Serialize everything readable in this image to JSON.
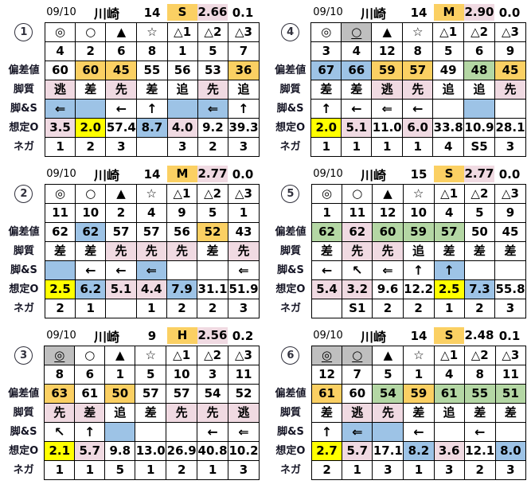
{
  "colors": {
    "orange": "#FBD063",
    "pink": "#F0DAE2",
    "blue": "#9DC3E6",
    "green": "#B4D7A4",
    "yellow": "#FFFF00",
    "gray": "#BFBFBF",
    "white": "#FFFFFF"
  },
  "row_labels": {
    "hensachi": "偏差値",
    "kyakushitsu": "脚質",
    "ashi_s": "脚&S",
    "soutei_o": "想定O",
    "nega": "ネガ"
  },
  "panels": [
    {
      "num": "1",
      "header": {
        "date": "09/10",
        "track": "川崎",
        "race": "14",
        "class": "S",
        "class_bg": "orange",
        "odds": "2.66",
        "odds_bg": "pink",
        "diff": "0.1"
      },
      "symbols": [
        {
          "t": "◎"
        },
        {
          "t": "○"
        },
        {
          "t": "▲"
        },
        {
          "t": "☆"
        },
        {
          "t": "△1"
        },
        {
          "t": "△2"
        },
        {
          "t": "△3"
        }
      ],
      "numbers": [
        "4",
        "2",
        "6",
        "8",
        "1",
        "5",
        "7"
      ],
      "hensachi": [
        {
          "t": "60"
        },
        {
          "t": "60",
          "bg": "orange"
        },
        {
          "t": "45",
          "bg": "orange"
        },
        {
          "t": "55"
        },
        {
          "t": "56"
        },
        {
          "t": "53"
        },
        {
          "t": "36",
          "bg": "orange"
        }
      ],
      "kyakushitsu": [
        {
          "t": "逃",
          "bg": "pink"
        },
        {
          "t": "差"
        },
        {
          "t": "先",
          "bg": "pink"
        },
        {
          "t": "差"
        },
        {
          "t": "追"
        },
        {
          "t": "先",
          "bg": "pink"
        },
        {
          "t": "追"
        }
      ],
      "ashi_s": [
        {
          "t": "⇐",
          "bg": "blue"
        },
        {
          "t": "",
          "bg": "blue"
        },
        {
          "t": "←"
        },
        {
          "t": "↑"
        },
        {
          "t": "",
          "bg": "blue"
        },
        {
          "t": "⇐",
          "bg": "blue"
        },
        {
          "t": "↑"
        }
      ],
      "soutei_o": [
        {
          "t": "3.5",
          "bg": "pink"
        },
        {
          "t": "2.0",
          "bg": "yellow"
        },
        {
          "t": "57.4"
        },
        {
          "t": "8.7",
          "bg": "blue"
        },
        {
          "t": "4.0",
          "bg": "pink"
        },
        {
          "t": "9.2"
        },
        {
          "t": "39.3"
        }
      ],
      "nega": [
        "1",
        "2",
        "3",
        "",
        "3",
        "2",
        "3"
      ]
    },
    {
      "num": "4",
      "header": {
        "date": "09/10",
        "track": "川崎",
        "race": "14",
        "class": "M",
        "class_bg": "orange",
        "odds": "2.90",
        "odds_bg": "pink",
        "diff": "0.0"
      },
      "symbols": [
        {
          "t": "◎"
        },
        {
          "t": "○",
          "bg": "gray",
          "u": true
        },
        {
          "t": "▲"
        },
        {
          "t": "☆"
        },
        {
          "t": "△1"
        },
        {
          "t": "△2"
        },
        {
          "t": "△3"
        }
      ],
      "numbers": [
        "3",
        "4",
        "12",
        "8",
        "5",
        "6",
        "9"
      ],
      "hensachi": [
        {
          "t": "67",
          "bg": "blue"
        },
        {
          "t": "66",
          "bg": "blue"
        },
        {
          "t": "59",
          "bg": "orange"
        },
        {
          "t": "57",
          "bg": "orange"
        },
        {
          "t": "49"
        },
        {
          "t": "48",
          "bg": "green"
        },
        {
          "t": "45",
          "bg": "orange"
        }
      ],
      "kyakushitsu": [
        {
          "t": "差"
        },
        {
          "t": "差"
        },
        {
          "t": "逃",
          "bg": "pink"
        },
        {
          "t": "先",
          "bg": "pink"
        },
        {
          "t": "追"
        },
        {
          "t": "追"
        },
        {
          "t": "先",
          "bg": "pink"
        }
      ],
      "ashi_s": [
        {
          "t": "↑"
        },
        {
          "t": "←"
        },
        {
          "t": "⇐"
        },
        {
          "t": "←"
        },
        {
          "t": ""
        },
        {
          "t": "",
          "bg": "blue"
        },
        {
          "t": ""
        }
      ],
      "soutei_o": [
        {
          "t": "2.0",
          "bg": "yellow"
        },
        {
          "t": "5.1",
          "bg": "pink"
        },
        {
          "t": "11.0"
        },
        {
          "t": "6.0",
          "bg": "pink"
        },
        {
          "t": "33.8"
        },
        {
          "t": "10.9"
        },
        {
          "t": "28.1"
        }
      ],
      "nega": [
        "1",
        "1",
        "1",
        "1",
        "4",
        "S5",
        "3"
      ]
    },
    {
      "num": "2",
      "header": {
        "date": "09/10",
        "track": "川崎",
        "race": "14",
        "class": "M",
        "class_bg": "orange",
        "odds": "2.77",
        "odds_bg": "pink",
        "diff": "0.0"
      },
      "symbols": [
        {
          "t": "◎"
        },
        {
          "t": "○"
        },
        {
          "t": "▲"
        },
        {
          "t": "☆"
        },
        {
          "t": "△1"
        },
        {
          "t": "△2"
        },
        {
          "t": "△3"
        }
      ],
      "numbers": [
        "11",
        "10",
        "2",
        "4",
        "9",
        "5",
        "1"
      ],
      "hensachi": [
        {
          "t": "62"
        },
        {
          "t": "62",
          "bg": "blue"
        },
        {
          "t": "57"
        },
        {
          "t": "57"
        },
        {
          "t": "56"
        },
        {
          "t": "52",
          "bg": "orange"
        },
        {
          "t": "43"
        }
      ],
      "kyakushitsu": [
        {
          "t": "差"
        },
        {
          "t": "差"
        },
        {
          "t": "先",
          "bg": "pink"
        },
        {
          "t": "先",
          "bg": "pink"
        },
        {
          "t": "先",
          "bg": "pink"
        },
        {
          "t": "差"
        },
        {
          "t": "先",
          "bg": "pink"
        }
      ],
      "ashi_s": [
        {
          "t": "",
          "bg": "blue"
        },
        {
          "t": "←"
        },
        {
          "t": "←"
        },
        {
          "t": "⇐",
          "bg": "blue"
        },
        {
          "t": ""
        },
        {
          "t": ""
        },
        {
          "t": "⇐"
        }
      ],
      "soutei_o": [
        {
          "t": "2.5",
          "bg": "yellow"
        },
        {
          "t": "6.2",
          "bg": "blue"
        },
        {
          "t": "5.1",
          "bg": "pink"
        },
        {
          "t": "4.4",
          "bg": "pink"
        },
        {
          "t": "7.9",
          "bg": "blue"
        },
        {
          "t": "31.1"
        },
        {
          "t": "51.9"
        }
      ],
      "nega": [
        "2",
        "1",
        "",
        "1",
        "2",
        "2",
        "3"
      ]
    },
    {
      "num": "5",
      "header": {
        "date": "09/10",
        "track": "川崎",
        "race": "15",
        "class": "S",
        "class_bg": "orange",
        "odds": "2.77",
        "odds_bg": "pink",
        "diff": "0.0"
      },
      "symbols": [
        {
          "t": "◎"
        },
        {
          "t": "○"
        },
        {
          "t": "▲"
        },
        {
          "t": "☆"
        },
        {
          "t": "△1"
        },
        {
          "t": "△2"
        },
        {
          "t": "△3"
        }
      ],
      "numbers": [
        "1",
        "11",
        "12",
        "10",
        "4",
        "5",
        "9"
      ],
      "hensachi": [
        {
          "t": "62",
          "bg": "green"
        },
        {
          "t": "62",
          "bg": "pink"
        },
        {
          "t": "60",
          "bg": "green"
        },
        {
          "t": "59",
          "bg": "green"
        },
        {
          "t": "57",
          "bg": "green"
        },
        {
          "t": "50"
        },
        {
          "t": "45"
        }
      ],
      "kyakushitsu": [
        {
          "t": "差"
        },
        {
          "t": "先",
          "bg": "pink"
        },
        {
          "t": "先",
          "bg": "pink"
        },
        {
          "t": "追"
        },
        {
          "t": "差"
        },
        {
          "t": "差"
        },
        {
          "t": "差"
        }
      ],
      "ashi_s": [
        {
          "t": "←"
        },
        {
          "t": "↖"
        },
        {
          "t": "⇐"
        },
        {
          "t": "↑"
        },
        {
          "t": "↑",
          "bg": "blue"
        },
        {
          "t": ""
        },
        {
          "t": ""
        }
      ],
      "soutei_o": [
        {
          "t": "5.4",
          "bg": "pink"
        },
        {
          "t": "3.2",
          "bg": "pink"
        },
        {
          "t": "9.6"
        },
        {
          "t": "12.2"
        },
        {
          "t": "2.5",
          "bg": "yellow"
        },
        {
          "t": "7.3",
          "bg": "blue"
        },
        {
          "t": "55.8"
        }
      ],
      "nega": [
        "",
        "S1",
        "2",
        "2",
        "1",
        "2",
        "3"
      ]
    },
    {
      "num": "3",
      "header": {
        "date": "09/10",
        "track": "川崎",
        "race": "9",
        "class": "H",
        "class_bg": "orange",
        "odds": "2.56",
        "odds_bg": "pink",
        "diff": "0.2"
      },
      "symbols": [
        {
          "t": "◎",
          "bg": "gray",
          "u": true
        },
        {
          "t": "○"
        },
        {
          "t": "▲"
        },
        {
          "t": "☆"
        },
        {
          "t": "△1"
        },
        {
          "t": "△2"
        },
        {
          "t": "△3"
        }
      ],
      "numbers": [
        "8",
        "6",
        "1",
        "5",
        "10",
        "3",
        "11"
      ],
      "hensachi": [
        {
          "t": "63",
          "bg": "orange"
        },
        {
          "t": "61"
        },
        {
          "t": "50",
          "bg": "orange"
        },
        {
          "t": "57"
        },
        {
          "t": "57"
        },
        {
          "t": "54"
        },
        {
          "t": "52"
        }
      ],
      "kyakushitsu": [
        {
          "t": "先",
          "bg": "pink"
        },
        {
          "t": "差",
          "bg": "pink"
        },
        {
          "t": "追"
        },
        {
          "t": "差"
        },
        {
          "t": "先",
          "bg": "pink"
        },
        {
          "t": "先",
          "bg": "pink"
        },
        {
          "t": "逃",
          "bg": "pink"
        }
      ],
      "ashi_s": [
        {
          "t": "↖"
        },
        {
          "t": "↑"
        },
        {
          "t": "",
          "bg": "blue"
        },
        {
          "t": ""
        },
        {
          "t": ""
        },
        {
          "t": "←"
        },
        {
          "t": "⇐"
        }
      ],
      "soutei_o": [
        {
          "t": "2.1",
          "bg": "yellow"
        },
        {
          "t": "5.7",
          "bg": "pink"
        },
        {
          "t": "9.8"
        },
        {
          "t": "13.0"
        },
        {
          "t": "26.9"
        },
        {
          "t": "40.8"
        },
        {
          "t": "10.2"
        }
      ],
      "nega": [
        "1",
        "1",
        "5",
        "1",
        "2",
        "1",
        "3"
      ]
    },
    {
      "num": "6",
      "header": {
        "date": "09/10",
        "track": "川崎",
        "race": "14",
        "class": "S",
        "class_bg": "orange",
        "odds": "2.48",
        "odds_bg": "white",
        "diff": "0.1"
      },
      "symbols": [
        {
          "t": "◎",
          "bg": "gray",
          "u": true
        },
        {
          "t": "○",
          "bg": "gray",
          "u": true
        },
        {
          "t": "▲"
        },
        {
          "t": "☆"
        },
        {
          "t": "△1"
        },
        {
          "t": "△2"
        },
        {
          "t": "△3"
        }
      ],
      "numbers": [
        "12",
        "7",
        "5",
        "1",
        "4",
        "8",
        "11"
      ],
      "hensachi": [
        {
          "t": "61",
          "bg": "orange"
        },
        {
          "t": "60"
        },
        {
          "t": "54",
          "bg": "green"
        },
        {
          "t": "59",
          "bg": "orange"
        },
        {
          "t": "61",
          "bg": "green"
        },
        {
          "t": "55",
          "bg": "green"
        },
        {
          "t": "51",
          "bg": "green"
        }
      ],
      "kyakushitsu": [
        {
          "t": "差"
        },
        {
          "t": "逃",
          "bg": "pink"
        },
        {
          "t": "先",
          "bg": "pink"
        },
        {
          "t": "差"
        },
        {
          "t": "追"
        },
        {
          "t": "差"
        },
        {
          "t": "差"
        }
      ],
      "ashi_s": [
        {
          "t": "↑"
        },
        {
          "t": "⇐",
          "bg": "blue"
        },
        {
          "t": "",
          "bg": "blue"
        },
        {
          "t": "←"
        },
        {
          "t": ""
        },
        {
          "t": "←"
        },
        {
          "t": ""
        }
      ],
      "soutei_o": [
        {
          "t": "2.7",
          "bg": "yellow"
        },
        {
          "t": "5.7",
          "bg": "pink"
        },
        {
          "t": "17.1"
        },
        {
          "t": "8.2",
          "bg": "blue"
        },
        {
          "t": "3.6",
          "bg": "pink"
        },
        {
          "t": "12.1"
        },
        {
          "t": "8.0",
          "bg": "blue"
        }
      ],
      "nega": [
        "2",
        "1",
        "3",
        "1",
        "3",
        "2",
        "3"
      ]
    }
  ]
}
